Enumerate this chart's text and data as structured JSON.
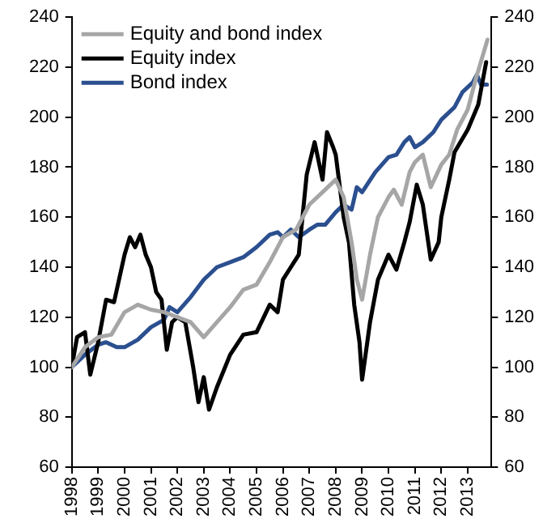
{
  "chart_data": {
    "type": "line",
    "xlim": [
      1998,
      2013.9
    ],
    "xticks": [
      1998,
      1999,
      2000,
      2001,
      2002,
      2003,
      2004,
      2005,
      2006,
      2007,
      2008,
      2009,
      2010,
      2011,
      2012,
      2013
    ],
    "ylim": [
      60,
      240
    ],
    "yticks": [
      60,
      80,
      100,
      120,
      140,
      160,
      180,
      200,
      220,
      240
    ],
    "y2lim": [
      60,
      240
    ],
    "y2ticks": [
      60,
      80,
      100,
      120,
      140,
      160,
      180,
      200,
      220,
      240
    ],
    "grid": false,
    "legend": "top left",
    "marker": "none",
    "line_style": "solid",
    "series": [
      {
        "name": "Equity and bond index",
        "color": "#a6a6a6",
        "x": [
          1998,
          1998.5,
          1999,
          1999.5,
          2000,
          2000.5,
          2001,
          2001.5,
          2002,
          2002.5,
          2003,
          2003.5,
          2004,
          2004.5,
          2005,
          2005.5,
          2006,
          2006.5,
          2007,
          2007.5,
          2008,
          2008.3,
          2008.6,
          2008.8,
          2009,
          2009.3,
          2009.6,
          2010,
          2010.2,
          2010.5,
          2010.8,
          2011,
          2011.3,
          2011.6,
          2012,
          2012.3,
          2012.6,
          2013,
          2013.3,
          2013.75
        ],
        "values": [
          100,
          108,
          112,
          113,
          122,
          125,
          123,
          122,
          120,
          118,
          112,
          118,
          124,
          131,
          133,
          142,
          152,
          155,
          165,
          170,
          175,
          168,
          150,
          135,
          127,
          145,
          160,
          168,
          171,
          165,
          178,
          182,
          185,
          172,
          181,
          185,
          195,
          203,
          215,
          231
        ]
      },
      {
        "name": "Equity index",
        "color": "#000000",
        "x": [
          1998,
          1998.2,
          1998.5,
          1998.7,
          1999,
          1999.3,
          1999.6,
          2000,
          2000.2,
          2000.4,
          2000.6,
          2000.8,
          2001,
          2001.2,
          2001.4,
          2001.6,
          2001.8,
          2002,
          2002.3,
          2002.6,
          2002.8,
          2003,
          2003.2,
          2003.5,
          2004,
          2004.5,
          2005,
          2005.5,
          2005.8,
          2006,
          2006.3,
          2006.6,
          2006.9,
          2007.2,
          2007.5,
          2007.67,
          2007.9,
          2008,
          2008.3,
          2008.5,
          2008.7,
          2008.9,
          2009,
          2009.3,
          2009.6,
          2010,
          2010.3,
          2010.6,
          2010.8,
          2011.07,
          2011.3,
          2011.6,
          2011.9,
          2012,
          2012.3,
          2012.5,
          2013,
          2013.4,
          2013.7
        ],
        "values": [
          100,
          112,
          114,
          97,
          110,
          127,
          126,
          145,
          152,
          148,
          153,
          145,
          140,
          130,
          127,
          107,
          118,
          120,
          118,
          100,
          86,
          96,
          83,
          92,
          105,
          113,
          114,
          125,
          122,
          135,
          140,
          145,
          177,
          190,
          175,
          194,
          188,
          185,
          160,
          150,
          125,
          110,
          95,
          118,
          135,
          145,
          139,
          150,
          158,
          173,
          165,
          143,
          150,
          160,
          175,
          186,
          195,
          205,
          222
        ]
      },
      {
        "name": "Bond index",
        "color": "#2b4f8f",
        "x": [
          1998,
          1998.5,
          1999,
          1999.3,
          1999.7,
          2000,
          2000.5,
          2001,
          2001.5,
          2001.7,
          2002,
          2002.5,
          2003,
          2003.5,
          2004,
          2004.5,
          2005,
          2005.5,
          2005.8,
          2006,
          2006.3,
          2006.6,
          2007,
          2007.3,
          2007.6,
          2008,
          2008.3,
          2008.6,
          2008.8,
          2009,
          2009.5,
          2010,
          2010.3,
          2010.6,
          2010.8,
          2011,
          2011.3,
          2011.7,
          2012,
          2012.5,
          2012.8,
          2013.2,
          2013.35,
          2013.5,
          2013.73
        ],
        "values": [
          100,
          105,
          109,
          110,
          108,
          108,
          111,
          116,
          119,
          124,
          122,
          128,
          135,
          140,
          142,
          144,
          148,
          153,
          154,
          152,
          155,
          152,
          155,
          157,
          157,
          162,
          165,
          163,
          172,
          170,
          178,
          184,
          185,
          190,
          192,
          188,
          190,
          194,
          199,
          204,
          210,
          214,
          217,
          213,
          213
        ]
      }
    ]
  }
}
